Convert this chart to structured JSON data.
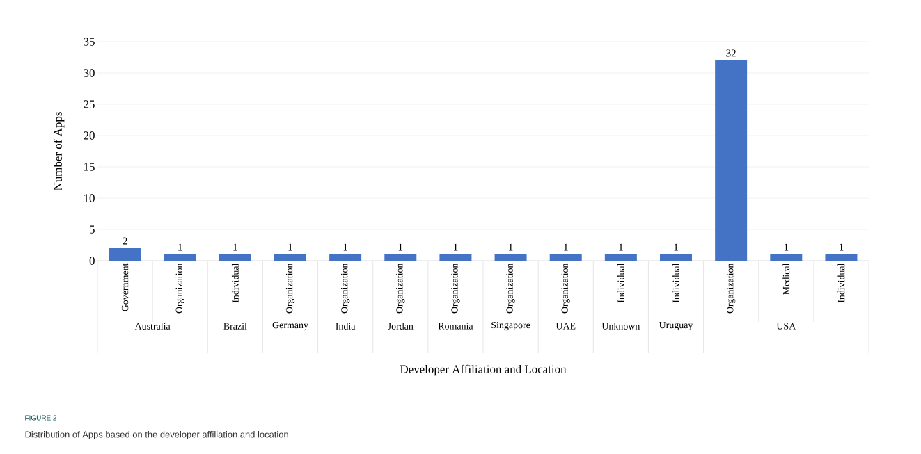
{
  "chart_data": {
    "type": "bar",
    "categories": [
      "Government",
      "Organization",
      "Individual",
      "Organization",
      "Organization",
      "Organization",
      "Organization",
      "Organization",
      "Organization",
      "Individual",
      "Individual",
      "Organization",
      "Medical",
      "Individual"
    ],
    "values": [
      2,
      1,
      1,
      1,
      1,
      1,
      1,
      1,
      1,
      1,
      1,
      32,
      1,
      1
    ],
    "color": "#4472c4",
    "ylim": [
      0,
      35
    ],
    "yticks": [
      0,
      5,
      10,
      15,
      20,
      25,
      30,
      35
    ],
    "grid": "y",
    "data_labels": true,
    "xlabel": "Developer Affiliation and Location",
    "ylabel": "Number of Apps",
    "annotations": [
      "FIGURE 2",
      "Distribution of Apps based on the developer affiliation and location.",
      "Australia",
      "Brazil",
      "Germany",
      "India",
      "Jordan",
      "Romania",
      "Singapore",
      "UAE",
      "Unknown",
      "Uruguay",
      "USA"
    ]
  }
}
